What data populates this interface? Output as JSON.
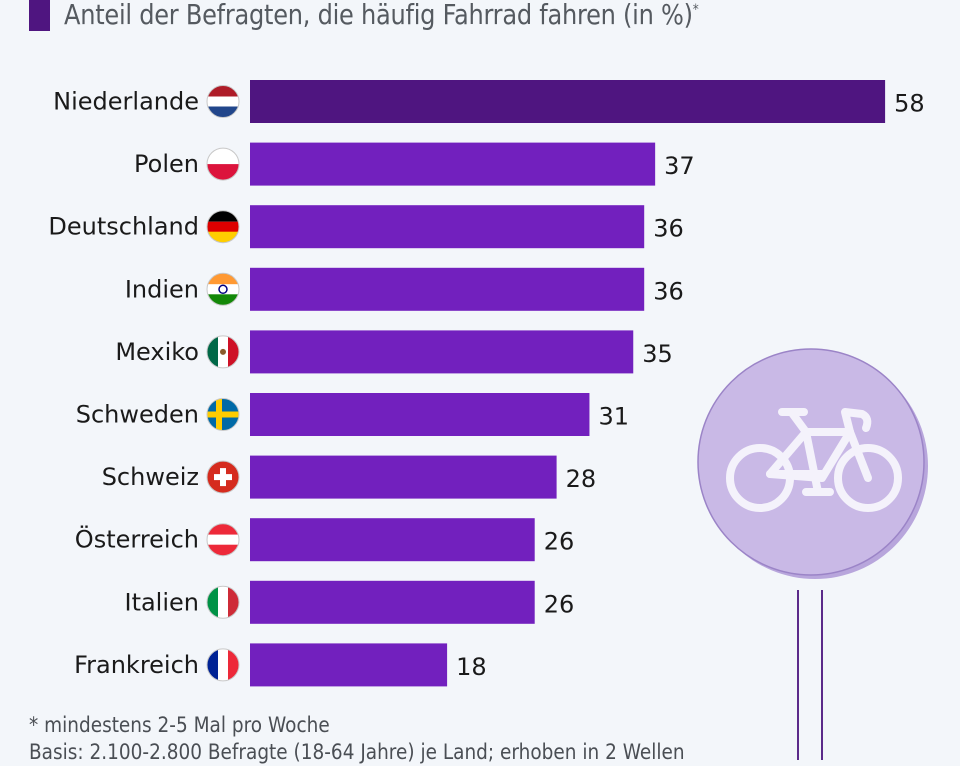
{
  "header": {
    "legend_color": "#4f1580",
    "title": "Anteil der Befragten, die häufig Fahrrad fahren (in %)",
    "title_marker": "*"
  },
  "footnote": {
    "lines": [
      "* mindestens 2-5 Mal pro Woche",
      "Basis: 2.100-2.800 Befragte (18-64 Jahre) je Land; erhoben in 2 Wellen"
    ]
  },
  "decoration": {
    "icon": "bicycle-icon",
    "circle_fill": "#c9b9e6",
    "circle_stroke": "#9b84c7",
    "pole_color": "#5b2a8a"
  },
  "chart_data": {
    "type": "bar",
    "orientation": "horizontal",
    "title": "Anteil der Befragten, die häufig Fahrrad fahren (in %)*",
    "xlabel": "",
    "ylabel": "",
    "xlim": [
      0,
      60
    ],
    "grid": false,
    "categories": [
      "Niederlande",
      "Polen",
      "Deutschland",
      "Indien",
      "Mexiko",
      "Schweden",
      "Schweiz",
      "Österreich",
      "Italien",
      "Frankreich"
    ],
    "flags": [
      "netherlands-flag-icon",
      "poland-flag-icon",
      "germany-flag-icon",
      "india-flag-icon",
      "mexico-flag-icon",
      "sweden-flag-icon",
      "switzerland-flag-icon",
      "austria-flag-icon",
      "italy-flag-icon",
      "france-flag-icon"
    ],
    "values": [
      58,
      37,
      36,
      36,
      35,
      31,
      28,
      26,
      26,
      18
    ],
    "colors": [
      "#4f1580",
      "#7220be",
      "#7220be",
      "#7220be",
      "#7220be",
      "#7220be",
      "#7220be",
      "#7220be",
      "#7220be",
      "#7220be"
    ],
    "unit": "%"
  }
}
